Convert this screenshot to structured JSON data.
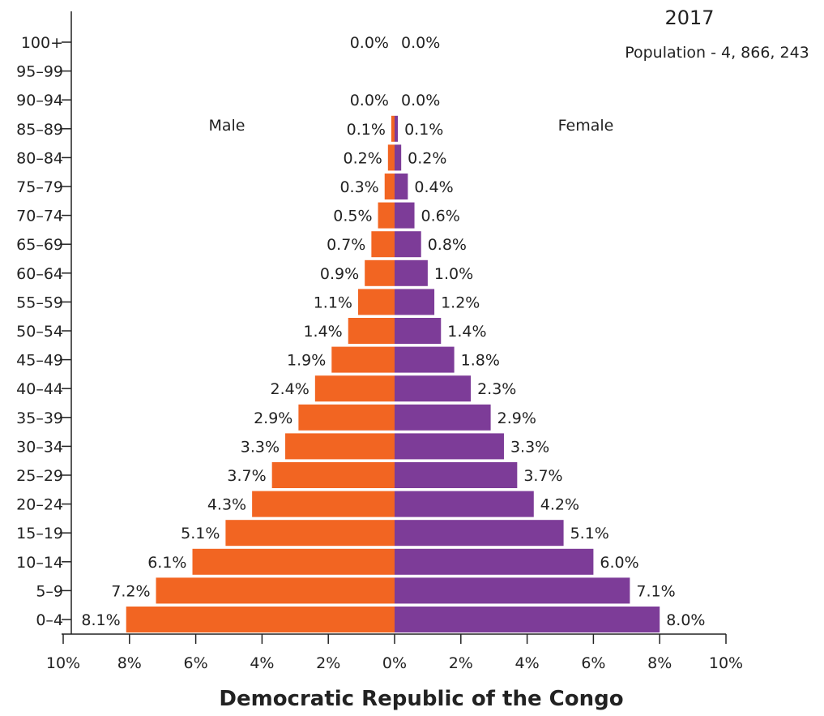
{
  "chart_data": {
    "type": "bar",
    "orientation": "horizontal",
    "subtype": "population-pyramid",
    "year": "2017",
    "population_label": "Population - 4, 866, 243",
    "footer_title": "Democratic Republic of the Congo",
    "left_label": "Male",
    "right_label": "Female",
    "categories": [
      "0–4",
      "5–9",
      "10–14",
      "15–19",
      "20–24",
      "25–29",
      "30–34",
      "35–39",
      "40–44",
      "45–49",
      "50–54",
      "55–59",
      "60–64",
      "65–69",
      "70–74",
      "75–79",
      "80–84",
      "85–89",
      "90–94",
      "95–99",
      "100+"
    ],
    "series": [
      {
        "name": "Male",
        "color": "#f26522",
        "values": [
          8.1,
          7.2,
          6.1,
          5.1,
          4.3,
          3.7,
          3.3,
          2.9,
          2.4,
          1.9,
          1.4,
          1.1,
          0.9,
          0.7,
          0.5,
          0.3,
          0.2,
          0.1,
          0.0,
          null,
          0.0
        ],
        "labels": [
          "8.1%",
          "7.2%",
          "6.1%",
          "5.1%",
          "4.3%",
          "3.7%",
          "3.3%",
          "2.9%",
          "2.4%",
          "1.9%",
          "1.4%",
          "1.1%",
          "0.9%",
          "0.7%",
          "0.5%",
          "0.3%",
          "0.2%",
          "0.1%",
          "0.0%",
          "",
          "0.0%"
        ]
      },
      {
        "name": "Female",
        "color": "#7d3c98",
        "values": [
          8.0,
          7.1,
          6.0,
          5.1,
          4.2,
          3.7,
          3.3,
          2.9,
          2.3,
          1.8,
          1.4,
          1.2,
          1.0,
          0.8,
          0.6,
          0.4,
          0.2,
          0.1,
          0.0,
          null,
          0.0
        ],
        "labels": [
          "8.0%",
          "7.1%",
          "6.0%",
          "5.1%",
          "4.2%",
          "3.7%",
          "3.3%",
          "2.9%",
          "2.3%",
          "1.8%",
          "1.4%",
          "1.2%",
          "1.0%",
          "0.8%",
          "0.6%",
          "0.4%",
          "0.2%",
          "0.1%",
          "0.0%",
          "",
          "0.0%"
        ]
      }
    ],
    "xlim": [
      -10,
      10
    ],
    "x_ticks": [
      "10%",
      "8%",
      "6%",
      "4%",
      "2%",
      "0%",
      "2%",
      "4%",
      "6%",
      "8%",
      "10%"
    ],
    "grid": false
  }
}
